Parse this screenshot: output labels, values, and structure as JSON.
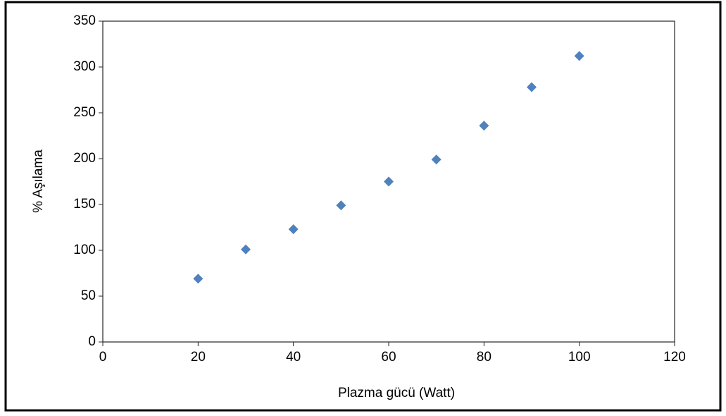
{
  "chart_data": {
    "type": "scatter",
    "x_label": "Plazma gücü (Watt)",
    "y_label": "% Aşılama",
    "x": [
      20,
      30,
      40,
      50,
      60,
      70,
      80,
      90,
      100
    ],
    "values": [
      69,
      101,
      123,
      149,
      175,
      199,
      236,
      278,
      312
    ],
    "color": "#4f81bd",
    "marker": "diamond",
    "xlim": [
      0,
      120
    ],
    "xticks": [
      0,
      20,
      40,
      60,
      80,
      100,
      120
    ],
    "ylim": [
      0,
      350
    ],
    "yticks": [
      0,
      50,
      100,
      150,
      200,
      250,
      300,
      350
    ],
    "grid": false
  }
}
